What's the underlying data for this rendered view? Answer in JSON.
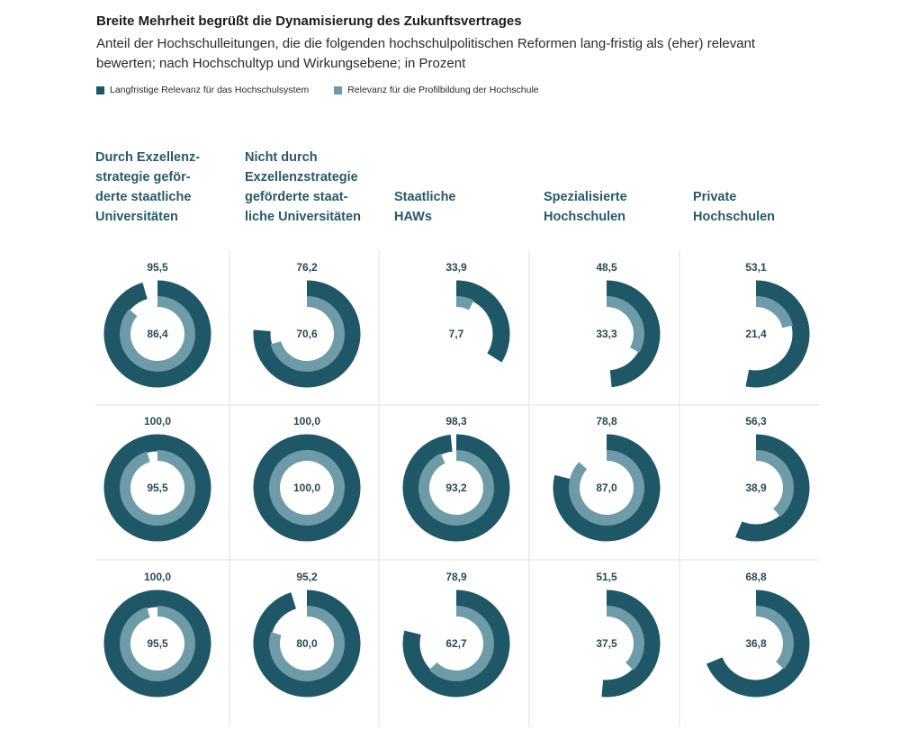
{
  "title": "Breite Mehrheit begrüßt die Dynamisierung des Zukunftsvertrages",
  "subtitle": "Anteil der Hochschulleitungen, die die folgenden hochschulpolitischen Reformen lang-fristig als (eher) relevant bewerten; nach Hochschultyp und Wirkungsebene; in Prozent",
  "legend": [
    {
      "label": "Langfristige Relevanz für das Hochschulsystem",
      "color": "#1f5766"
    },
    {
      "label": "Relevanz für die Profilbildung der Hochschule",
      "color": "#6f9aa8"
    }
  ],
  "colors": {
    "outer": "#1f5766",
    "inner": "#6f9aa8",
    "grid": "#e6e2dc"
  },
  "columns": [
    [
      "Durch Exzellenz-",
      "strategie geför-",
      "derte staatliche",
      "Universitäten"
    ],
    [
      "Nicht durch",
      "Exzellenzstrategie",
      "geförderte staat-",
      "liche Universitäten"
    ],
    [
      "Staatliche",
      "HAWs"
    ],
    [
      "Spezialisierte",
      "Hochschulen"
    ],
    [
      "Private",
      "Hochschulen"
    ]
  ],
  "chart_data": {
    "type": "donut",
    "title": "Breite Mehrheit begrüßt die Dynamisierung des Zukunftsvertrages",
    "series": [
      {
        "name": "Langfristige Relevanz für das Hochschulsystem",
        "ring": "outer"
      },
      {
        "name": "Relevanz für die Profilbildung der Hochschule",
        "ring": "inner"
      }
    ],
    "categories": [
      "Durch Exzellenzstrategie geförderte staatliche Universitäten",
      "Nicht durch Exzellenzstrategie geförderte staatliche Universitäten",
      "Staatliche HAWs",
      "Spezialisierte Hochschulen",
      "Private Hochschulen"
    ],
    "rows": [
      [
        {
          "outer": 95.5,
          "inner": 86.4,
          "outer_label": "95,5",
          "inner_label": "86,4"
        },
        {
          "outer": 76.2,
          "inner": 70.6,
          "outer_label": "76,2",
          "inner_label": "70,6"
        },
        {
          "outer": 33.9,
          "inner": 7.7,
          "outer_label": "33,9",
          "inner_label": "7,7"
        },
        {
          "outer": 48.5,
          "inner": 33.3,
          "outer_label": "48,5",
          "inner_label": "33,3"
        },
        {
          "outer": 53.1,
          "inner": 21.4,
          "outer_label": "53,1",
          "inner_label": "21,4"
        }
      ],
      [
        {
          "outer": 100.0,
          "inner": 95.5,
          "outer_label": "100,0",
          "inner_label": "95,5"
        },
        {
          "outer": 100.0,
          "inner": 100.0,
          "outer_label": "100,0",
          "inner_label": "100,0"
        },
        {
          "outer": 98.3,
          "inner": 93.2,
          "outer_label": "98,3",
          "inner_label": "93,2"
        },
        {
          "outer": 78.8,
          "inner": 87.0,
          "outer_label": "78,8",
          "inner_label": "87,0"
        },
        {
          "outer": 56.3,
          "inner": 38.9,
          "outer_label": "56,3",
          "inner_label": "38,9"
        }
      ],
      [
        {
          "outer": 100.0,
          "inner": 95.5,
          "outer_label": "100,0",
          "inner_label": "95,5"
        },
        {
          "outer": 95.2,
          "inner": 80.0,
          "outer_label": "95,2",
          "inner_label": "80,0"
        },
        {
          "outer": 78.9,
          "inner": 62.7,
          "outer_label": "78,9",
          "inner_label": "62,7"
        },
        {
          "outer": 51.5,
          "inner": 37.5,
          "outer_label": "51,5",
          "inner_label": "37,5"
        },
        {
          "outer": 68.8,
          "inner": 36.8,
          "outer_label": "68,8",
          "inner_label": "36,8"
        }
      ]
    ]
  }
}
